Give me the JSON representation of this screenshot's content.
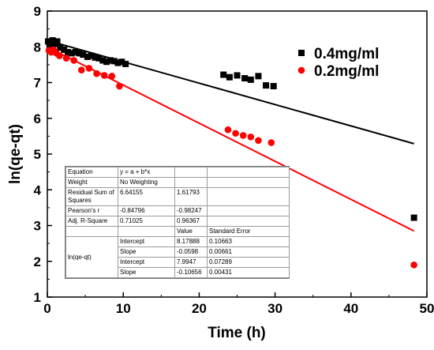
{
  "chart_data": {
    "type": "scatter",
    "xlabel": "Time (h)",
    "ylabel": "ln(qe-qt)",
    "xlim": [
      0,
      50
    ],
    "ylim": [
      1,
      9
    ],
    "xticks": [
      0,
      10,
      20,
      30,
      40,
      50
    ],
    "yticks": [
      1,
      2,
      3,
      4,
      5,
      6,
      7,
      8,
      9
    ],
    "legend_position": "top-right",
    "series": [
      {
        "name": "0.4mg/ml",
        "color": "#000000",
        "marker": "square",
        "points": [
          [
            0.1,
            8.15
          ],
          [
            0.3,
            8.05
          ],
          [
            0.5,
            8.12
          ],
          [
            0.7,
            8.18
          ],
          [
            1.0,
            8.08
          ],
          [
            1.3,
            8.15
          ],
          [
            1.7,
            7.98
          ],
          [
            2.2,
            7.92
          ],
          [
            2.7,
            7.85
          ],
          [
            3.2,
            7.82
          ],
          [
            3.7,
            7.85
          ],
          [
            4.2,
            7.82
          ],
          [
            4.7,
            7.78
          ],
          [
            5.3,
            7.72
          ],
          [
            5.8,
            7.75
          ],
          [
            6.3,
            7.7
          ],
          [
            6.8,
            7.68
          ],
          [
            7.3,
            7.62
          ],
          [
            7.8,
            7.58
          ],
          [
            8.3,
            7.62
          ],
          [
            8.8,
            7.6
          ],
          [
            9.3,
            7.55
          ],
          [
            9.8,
            7.58
          ],
          [
            10.3,
            7.52
          ],
          [
            23.2,
            7.22
          ],
          [
            24.0,
            7.15
          ],
          [
            25.0,
            7.2
          ],
          [
            26.0,
            7.12
          ],
          [
            26.8,
            7.08
          ],
          [
            27.8,
            7.18
          ],
          [
            28.8,
            6.92
          ],
          [
            29.8,
            6.9
          ],
          [
            48.3,
            3.22
          ]
        ],
        "fit": {
          "intercept": 8.17888,
          "slope": -0.0598
        }
      },
      {
        "name": "0.2mg/ml",
        "color": "#ff0000",
        "marker": "circle",
        "points": [
          [
            0.2,
            7.9
          ],
          [
            0.5,
            7.85
          ],
          [
            0.8,
            7.92
          ],
          [
            1.2,
            7.82
          ],
          [
            1.6,
            7.75
          ],
          [
            2.5,
            7.68
          ],
          [
            3.5,
            7.62
          ],
          [
            4.5,
            7.35
          ],
          [
            5.5,
            7.4
          ],
          [
            6.5,
            7.25
          ],
          [
            7.5,
            7.2
          ],
          [
            8.5,
            7.18
          ],
          [
            9.5,
            6.9
          ],
          [
            23.8,
            5.68
          ],
          [
            24.8,
            5.58
          ],
          [
            25.8,
            5.52
          ],
          [
            26.8,
            5.48
          ],
          [
            27.8,
            5.38
          ],
          [
            29.5,
            5.32
          ],
          [
            48.3,
            1.9
          ]
        ],
        "fit": {
          "intercept": 7.9947,
          "slope": -0.10656
        }
      }
    ],
    "fit_table": {
      "rows": [
        {
          "label": "Equation",
          "v1": "y = a + b*x",
          "v2": "",
          "v3": ""
        },
        {
          "label": "Weight",
          "v1": "No Weighting",
          "v2": "",
          "v3": ""
        },
        {
          "label": "Residual Sum of Squares",
          "v1": "6.64155",
          "v2": "1.61793",
          "v3": ""
        },
        {
          "label": "Pearson's r",
          "v1": "-0.84796",
          "v2": "-0.98247",
          "v3": ""
        },
        {
          "label": "Adj. R-Square",
          "v1": "0.71025",
          "v2": "0.96367",
          "v3": ""
        }
      ],
      "columns": [
        "",
        "Value",
        "Standard Error"
      ],
      "group_label": "ln(qe-qt)",
      "params": [
        {
          "name": "Intercept",
          "value": "8.17888",
          "error": "0.10663"
        },
        {
          "name": "Slope",
          "value": "-0.0598",
          "error": "0.00661"
        },
        {
          "name": "Intercept",
          "value": "7.9947",
          "error": "0.07289"
        },
        {
          "name": "Slope",
          "value": "-0.10656",
          "error": "0.00431"
        }
      ]
    }
  }
}
